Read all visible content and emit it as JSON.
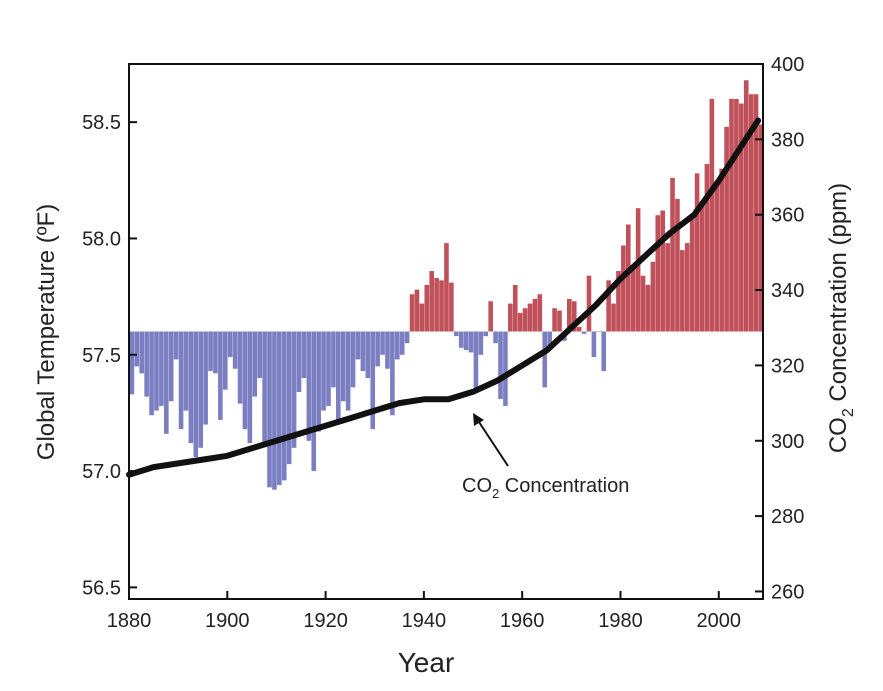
{
  "chart_data": {
    "type": "bar",
    "title": "",
    "xlabel": "Year",
    "ylabel": "Global Temperature (ºF)",
    "y2label_main": "CO",
    "y2label_sub": "2",
    "y2label_rest": " Concentration (ppm)",
    "xlim": [
      1880,
      2009
    ],
    "ylim": [
      56.45,
      58.75
    ],
    "y2lim": [
      258,
      400
    ],
    "baseline": 57.6,
    "xticks": [
      1880,
      1900,
      1920,
      1940,
      1960,
      1980,
      2000
    ],
    "yticks": [
      "56.5",
      "57.0",
      "57.5",
      "58.0",
      "58.5"
    ],
    "y2ticks": [
      "260",
      "280",
      "300",
      "320",
      "340",
      "360",
      "380",
      "400"
    ],
    "colors": {
      "above": "#c0505a",
      "below": "#7b7fc2",
      "line": "#111111"
    },
    "annotation": {
      "main": "CO",
      "sub": "2",
      "rest": " Concentration",
      "points_to_year": 1950
    },
    "series": [
      {
        "kind": "bar",
        "axis": "left",
        "x": [
          1880,
          1881,
          1882,
          1883,
          1884,
          1885,
          1886,
          1887,
          1888,
          1889,
          1890,
          1891,
          1892,
          1893,
          1894,
          1895,
          1896,
          1897,
          1898,
          1899,
          1900,
          1901,
          1902,
          1903,
          1904,
          1905,
          1906,
          1907,
          1908,
          1909,
          1910,
          1911,
          1912,
          1913,
          1914,
          1915,
          1916,
          1917,
          1918,
          1919,
          1920,
          1921,
          1922,
          1923,
          1924,
          1925,
          1926,
          1927,
          1928,
          1929,
          1930,
          1931,
          1932,
          1933,
          1934,
          1935,
          1936,
          1937,
          1938,
          1939,
          1940,
          1941,
          1942,
          1943,
          1944,
          1945,
          1946,
          1947,
          1948,
          1949,
          1950,
          1951,
          1952,
          1953,
          1954,
          1955,
          1956,
          1957,
          1958,
          1959,
          1960,
          1961,
          1962,
          1963,
          1964,
          1965,
          1966,
          1967,
          1968,
          1969,
          1970,
          1971,
          1972,
          1973,
          1974,
          1975,
          1976,
          1977,
          1978,
          1979,
          1980,
          1981,
          1982,
          1983,
          1984,
          1985,
          1986,
          1987,
          1988,
          1989,
          1990,
          1991,
          1992,
          1993,
          1994,
          1995,
          1996,
          1997,
          1998,
          1999,
          2000,
          2001,
          2002,
          2003,
          2004,
          2005,
          2006,
          2007,
          2008
        ],
        "values": [
          57.33,
          57.45,
          57.42,
          57.32,
          57.24,
          57.26,
          57.28,
          57.16,
          57.3,
          57.48,
          57.18,
          57.26,
          57.12,
          57.06,
          57.1,
          57.2,
          57.43,
          57.42,
          57.22,
          57.35,
          57.49,
          57.44,
          57.29,
          57.18,
          57.12,
          57.32,
          57.4,
          57.12,
          56.93,
          56.92,
          56.94,
          56.96,
          57.03,
          57.1,
          57.34,
          57.4,
          57.13,
          57.0,
          57.17,
          57.26,
          57.28,
          57.36,
          57.22,
          57.3,
          57.26,
          57.36,
          57.48,
          57.43,
          57.4,
          57.18,
          57.45,
          57.5,
          57.44,
          57.24,
          57.48,
          57.5,
          57.55,
          57.76,
          57.78,
          57.72,
          57.8,
          57.86,
          57.83,
          57.82,
          57.98,
          57.81,
          57.58,
          57.53,
          57.52,
          57.51,
          57.35,
          57.5,
          57.58,
          57.73,
          57.55,
          57.31,
          57.28,
          57.72,
          57.8,
          57.68,
          57.7,
          57.72,
          57.74,
          57.76,
          57.36,
          57.53,
          57.7,
          57.69,
          57.56,
          57.74,
          57.73,
          57.62,
          57.59,
          57.84,
          57.49,
          57.6,
          57.43,
          57.82,
          57.72,
          57.86,
          57.97,
          58.06,
          57.87,
          58.13,
          57.84,
          57.8,
          57.9,
          58.1,
          58.12,
          57.98,
          58.26,
          58.17,
          57.95,
          57.98,
          58.1,
          58.28,
          58.14,
          58.32,
          58.6,
          58.24,
          58.3,
          58.48,
          58.6,
          58.6,
          58.58,
          58.68,
          58.62,
          58.62,
          58.49
        ]
      },
      {
        "kind": "line",
        "axis": "right",
        "name": "CO2 Concentration",
        "x": [
          1880,
          1885,
          1890,
          1895,
          1900,
          1905,
          1910,
          1915,
          1920,
          1925,
          1930,
          1935,
          1940,
          1945,
          1950,
          1955,
          1960,
          1965,
          1970,
          1975,
          1980,
          1985,
          1990,
          1995,
          2000,
          2005,
          2008
        ],
        "values": [
          291,
          293,
          294,
          295,
          296,
          298,
          300,
          302,
          304,
          306,
          308,
          310,
          311,
          311,
          313,
          316,
          320,
          324,
          330,
          336,
          343,
          349,
          355,
          360,
          369,
          379,
          385
        ]
      }
    ]
  }
}
